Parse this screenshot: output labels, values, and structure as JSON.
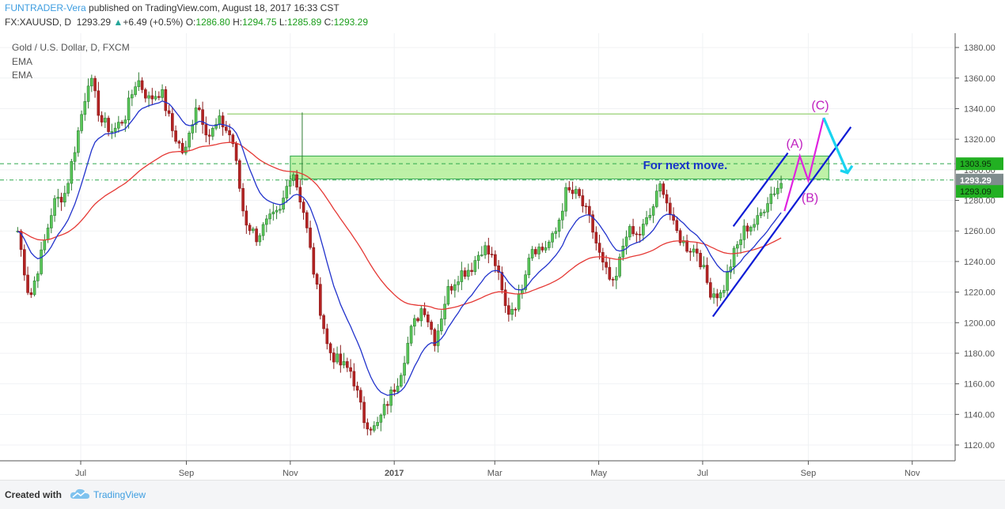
{
  "header": {
    "author": "FUNTRADER-Vera",
    "published_text": " published on TradingView.com, August 18, 2017 16:33 CST",
    "symbol_line": "FX:XAUUSD, D",
    "last": "1293.29",
    "change": "+6.49 (+0.5%)",
    "open_label": "O:",
    "open": "1286.80",
    "high_label": "H:",
    "high": "1294.75",
    "low_label": "L:",
    "low": "1285.89",
    "close_label": "C:",
    "close": "1293.29"
  },
  "legend": {
    "title": "Gold / U.S. Dollar, D, FXCM",
    "ema1": "EMA",
    "ema2": "EMA"
  },
  "footer": {
    "created": "Created with",
    "brand": "TradingView"
  },
  "colors": {
    "up": "#26a69a",
    "down": "#ef5350",
    "bull_candle": "#2e7d32",
    "bear_candle": "#8b1a1a",
    "ema_fast": "#2233cc",
    "ema_slow": "#e53935",
    "channel": "#0d1bd6",
    "wave": "#e022e0",
    "arrow": "#19d4f0",
    "zone_fill": "#a8ec8a",
    "zone_line": "#2ea84c",
    "price_tag": "#22b022"
  },
  "chart_data": {
    "type": "candlestick",
    "symbol": "XAUUSD",
    "timeframe": "D",
    "x_tick_labels": [
      "Jul",
      "Sep",
      "Nov",
      "2017",
      "Mar",
      "May",
      "Jul",
      "Sep",
      "Nov"
    ],
    "y_tick_labels": [
      "1120.00",
      "1140.00",
      "1160.00",
      "1180.00",
      "1200.00",
      "1220.00",
      "1240.00",
      "1260.00",
      "1280.00",
      "1300.00",
      "1320.00",
      "1340.00",
      "1360.00",
      "1380.00"
    ],
    "ylim": [
      1110,
      1389
    ],
    "price_tags": [
      {
        "value": 1303.95,
        "label": "1303.95"
      },
      {
        "value": 1293.29,
        "label": "1293.29"
      },
      {
        "value": 1293.09,
        "label": "1293.09"
      }
    ],
    "horizontal_levels": [
      1303.95,
      1293.29,
      1336.5
    ],
    "supply_zone": {
      "from": 1294,
      "to": 1309
    },
    "annotation_text": "For next move.",
    "wave_labels": [
      "(A)",
      "(B)",
      "(C)"
    ],
    "closes": [
      {
        "date": "2016-05-25",
        "close": 1260
      },
      {
        "date": "2016-06-01",
        "close": 1215
      },
      {
        "date": "2016-06-08",
        "close": 1245
      },
      {
        "date": "2016-06-15",
        "close": 1278
      },
      {
        "date": "2016-06-22",
        "close": 1285
      },
      {
        "date": "2016-06-29",
        "close": 1322
      },
      {
        "date": "2016-07-06",
        "close": 1362
      },
      {
        "date": "2016-07-13",
        "close": 1332
      },
      {
        "date": "2016-07-20",
        "close": 1325
      },
      {
        "date": "2016-07-27",
        "close": 1335
      },
      {
        "date": "2016-08-03",
        "close": 1360
      },
      {
        "date": "2016-08-10",
        "close": 1346
      },
      {
        "date": "2016-08-17",
        "close": 1352
      },
      {
        "date": "2016-08-24",
        "close": 1325
      },
      {
        "date": "2016-08-31",
        "close": 1309
      },
      {
        "date": "2016-09-07",
        "close": 1345
      },
      {
        "date": "2016-09-14",
        "close": 1322
      },
      {
        "date": "2016-09-21",
        "close": 1332
      },
      {
        "date": "2016-09-28",
        "close": 1320
      },
      {
        "date": "2016-10-05",
        "close": 1268
      },
      {
        "date": "2016-10-12",
        "close": 1256
      },
      {
        "date": "2016-10-19",
        "close": 1266
      },
      {
        "date": "2016-10-26",
        "close": 1272
      },
      {
        "date": "2016-11-02",
        "close": 1302
      },
      {
        "date": "2016-11-09",
        "close": 1272
      },
      {
        "date": "2016-11-16",
        "close": 1225
      },
      {
        "date": "2016-11-23",
        "close": 1183
      },
      {
        "date": "2016-11-30",
        "close": 1173
      },
      {
        "date": "2016-12-07",
        "close": 1168
      },
      {
        "date": "2016-12-14",
        "close": 1137
      },
      {
        "date": "2016-12-21",
        "close": 1130
      },
      {
        "date": "2016-12-28",
        "close": 1148
      },
      {
        "date": "2017-01-04",
        "close": 1165
      },
      {
        "date": "2017-01-11",
        "close": 1195
      },
      {
        "date": "2017-01-18",
        "close": 1212
      },
      {
        "date": "2017-01-25",
        "close": 1188
      },
      {
        "date": "2017-02-01",
        "close": 1220
      },
      {
        "date": "2017-02-08",
        "close": 1232
      },
      {
        "date": "2017-02-15",
        "close": 1236
      },
      {
        "date": "2017-02-22",
        "close": 1250
      },
      {
        "date": "2017-03-01",
        "close": 1240
      },
      {
        "date": "2017-03-08",
        "close": 1206
      },
      {
        "date": "2017-03-15",
        "close": 1215
      },
      {
        "date": "2017-03-22",
        "close": 1250
      },
      {
        "date": "2017-03-29",
        "close": 1248
      },
      {
        "date": "2017-04-05",
        "close": 1256
      },
      {
        "date": "2017-04-12",
        "close": 1286
      },
      {
        "date": "2017-04-19",
        "close": 1283
      },
      {
        "date": "2017-04-26",
        "close": 1266
      },
      {
        "date": "2017-05-03",
        "close": 1238
      },
      {
        "date": "2017-05-10",
        "close": 1222
      },
      {
        "date": "2017-05-17",
        "close": 1260
      },
      {
        "date": "2017-05-24",
        "close": 1256
      },
      {
        "date": "2017-05-31",
        "close": 1270
      },
      {
        "date": "2017-06-07",
        "close": 1292
      },
      {
        "date": "2017-06-14",
        "close": 1262
      },
      {
        "date": "2017-06-21",
        "close": 1250
      },
      {
        "date": "2017-06-28",
        "close": 1247
      },
      {
        "date": "2017-07-05",
        "close": 1221
      },
      {
        "date": "2017-07-12",
        "close": 1218
      },
      {
        "date": "2017-07-19",
        "close": 1244
      },
      {
        "date": "2017-07-26",
        "close": 1262
      },
      {
        "date": "2017-08-02",
        "close": 1266
      },
      {
        "date": "2017-08-09",
        "close": 1283
      },
      {
        "date": "2017-08-16",
        "close": 1291
      },
      {
        "date": "2017-08-18",
        "close": 1293.29
      }
    ]
  }
}
